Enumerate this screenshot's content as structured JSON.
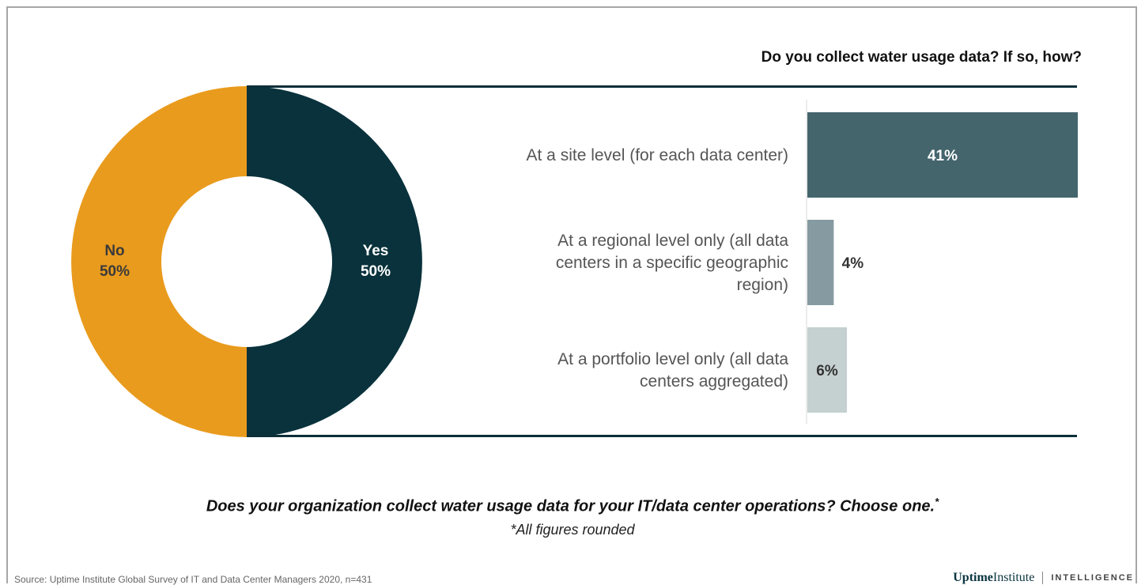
{
  "chart_data": [
    {
      "type": "pie",
      "labels": [
        "Yes",
        "No"
      ],
      "values": [
        50,
        50
      ],
      "value_labels": [
        "50%",
        "50%"
      ],
      "colors": [
        "#09323c",
        "#e99b1d"
      ],
      "donut": true
    },
    {
      "type": "bar",
      "orientation": "horizontal",
      "title": "Do you collect water usage data? If so, how?",
      "categories": [
        "At a site level (for each data center)",
        "At a regional level only (all data centers in a specific geographic region)",
        "At a portfolio level only (all data centers aggregated)"
      ],
      "category_lines": [
        [
          "At a site level (for each data center)"
        ],
        [
          "At a regional level only (all data",
          "centers in a specific geographic",
          "region)"
        ],
        [
          "At a portfolio level only (all data",
          "centers aggregated)"
        ]
      ],
      "values": [
        41,
        4,
        6
      ],
      "value_labels": [
        "41%",
        "4%",
        "6%"
      ],
      "colors": [
        "#45656d",
        "#869ba1",
        "#c5d0d0"
      ],
      "xlim": [
        0,
        41
      ]
    }
  ],
  "question": "Does your organization collect water usage data for your IT/data center operations? Choose one.",
  "question_marker": "*",
  "note": "*All figures rounded",
  "source": "Source: Uptime Institute Global Survey of IT and Data Center Managers 2020, n=431",
  "brand": {
    "uptime": "Uptime",
    "institute": "Institute",
    "intelligence": "INTELLIGENCE"
  }
}
